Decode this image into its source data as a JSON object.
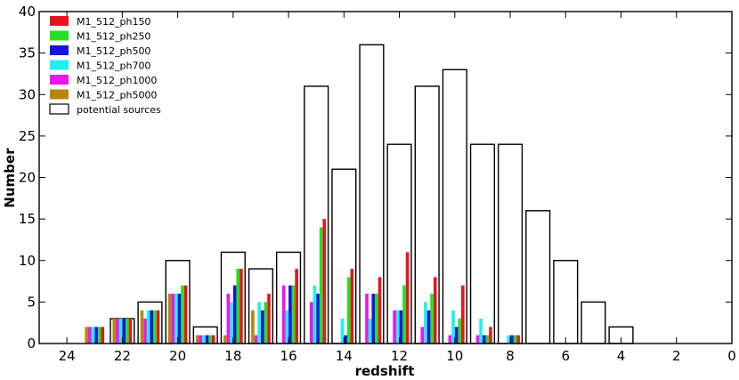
{
  "chart_data": {
    "type": "bar",
    "xlabel": "redshift",
    "ylabel": "Number",
    "xlim": [
      25,
      0
    ],
    "ylim": [
      0,
      40
    ],
    "xticks": [
      24,
      22,
      20,
      18,
      16,
      14,
      12,
      10,
      8,
      6,
      4,
      2,
      0
    ],
    "yticks": [
      0,
      5,
      10,
      15,
      20,
      25,
      30,
      35,
      40
    ],
    "legend_position": "top-left",
    "grid": false,
    "bins": [
      {
        "center": 23.0,
        "potential": 0
      },
      {
        "center": 22.0,
        "potential": 3
      },
      {
        "center": 21.0,
        "potential": 5
      },
      {
        "center": 20.0,
        "potential": 10
      },
      {
        "center": 19.0,
        "potential": 2
      },
      {
        "center": 18.0,
        "potential": 11
      },
      {
        "center": 17.0,
        "potential": 9
      },
      {
        "center": 16.0,
        "potential": 11
      },
      {
        "center": 15.0,
        "potential": 31
      },
      {
        "center": 14.0,
        "potential": 21
      },
      {
        "center": 13.0,
        "potential": 36
      },
      {
        "center": 12.0,
        "potential": 24
      },
      {
        "center": 11.0,
        "potential": 31
      },
      {
        "center": 10.0,
        "potential": 33
      },
      {
        "center": 9.0,
        "potential": 24
      },
      {
        "center": 8.0,
        "potential": 24
      },
      {
        "center": 7.0,
        "potential": 16
      },
      {
        "center": 6.0,
        "potential": 10
      },
      {
        "center": 5.0,
        "potential": 5
      },
      {
        "center": 4.0,
        "potential": 2
      },
      {
        "center": 3.0,
        "potential": 0
      },
      {
        "center": 2.0,
        "potential": 0
      },
      {
        "center": 1.0,
        "potential": 0
      }
    ],
    "series": [
      {
        "name": "M1_512_ph150",
        "color": "#e8141b",
        "values": [
          2,
          3,
          4,
          7,
          1,
          9,
          6,
          9,
          15,
          9,
          8,
          11,
          8,
          7,
          2,
          1,
          0,
          0,
          0,
          0,
          0,
          0,
          0
        ]
      },
      {
        "name": "M1_512_ph250",
        "color": "#22e022",
        "values": [
          2,
          3,
          4,
          7,
          1,
          9,
          5,
          7,
          14,
          8,
          6,
          7,
          6,
          3,
          1,
          1,
          0,
          0,
          0,
          0,
          0,
          0,
          0
        ]
      },
      {
        "name": "M1_512_ph500",
        "color": "#1414e0",
        "values": [
          2,
          3,
          4,
          6,
          1,
          7,
          4,
          7,
          6,
          1,
          6,
          4,
          4,
          2,
          1,
          1,
          0,
          0,
          0,
          0,
          0,
          0,
          0
        ]
      },
      {
        "name": "M1_512_ph700",
        "color": "#1ef0f0",
        "values": [
          2,
          3,
          4,
          6,
          1,
          5,
          5,
          4,
          7,
          3,
          3,
          4,
          5,
          4,
          3,
          1,
          0,
          0,
          0,
          0,
          0,
          0,
          0
        ]
      },
      {
        "name": "M1_512_ph1000",
        "color": "#f014f0",
        "values": [
          2,
          3,
          3,
          6,
          1,
          6,
          1,
          7,
          5,
          0,
          6,
          4,
          2,
          1,
          1,
          0,
          0,
          0,
          0,
          0,
          0,
          0,
          0
        ]
      },
      {
        "name": "M1_512_ph5000",
        "color": "#b8860b",
        "values": [
          2,
          3,
          4,
          6,
          1,
          1,
          4,
          0,
          0,
          0,
          0,
          0,
          0,
          0,
          0,
          0,
          0,
          0,
          0,
          0,
          0,
          0,
          0
        ]
      }
    ],
    "potential_label": "potential sources"
  }
}
